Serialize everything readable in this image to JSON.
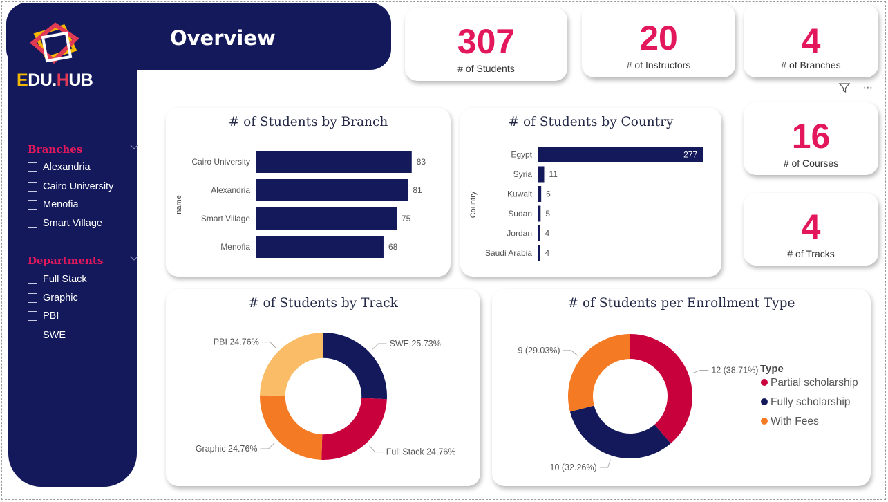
{
  "header": {
    "title": "Overview"
  },
  "logo": {
    "prefix": "E",
    "mid1": "DU.",
    "mid2": "H",
    "suffix": "UB",
    "colors": {
      "navy": "#13195b",
      "accent": "#e3185c",
      "yellow": "#f5b800"
    }
  },
  "slicers": {
    "branches": {
      "title": "Branches",
      "items": [
        "Alexandria",
        "Cairo University",
        "Menofia",
        "Smart Village"
      ]
    },
    "departments": {
      "title": "Departments",
      "items": [
        "Full Stack",
        "Graphic",
        "PBI",
        "SWE"
      ]
    }
  },
  "kpis": {
    "students": {
      "value": "307",
      "label": "# of Students"
    },
    "instructors": {
      "value": "20",
      "label": "# of Instructors"
    },
    "branches": {
      "value": "4",
      "label": "# of Branches"
    },
    "courses": {
      "value": "16",
      "label": "# of Courses"
    },
    "tracks": {
      "value": "4",
      "label": "# of Tracks"
    }
  },
  "toolbar": {
    "filter_icon": "filter-icon",
    "more_icon": "more-options-icon",
    "more_label": "⋯"
  },
  "chart_data": [
    {
      "type": "bar",
      "title": "# of Students by Branch",
      "ylabel": "name",
      "categories": [
        "Cairo University",
        "Alexandria",
        "Smart Village",
        "Menofia"
      ],
      "values": [
        83,
        81,
        75,
        68
      ],
      "xlim": [
        0,
        100
      ],
      "orientation": "horizontal",
      "color": "#13195b"
    },
    {
      "type": "bar",
      "title": "# of Students by Country",
      "ylabel": "Country",
      "categories": [
        "Egypt",
        "Syria",
        "Kuwait",
        "Sudan",
        "Jordan",
        "Saudi Arabia"
      ],
      "values": [
        277,
        11,
        6,
        5,
        4,
        4
      ],
      "xlim": [
        0,
        285
      ],
      "orientation": "horizontal",
      "color": "#13195b"
    },
    {
      "type": "pie",
      "title": "# of Students by Track",
      "donut": true,
      "slices": [
        {
          "label": "SWE 25.73%",
          "value": 25.73,
          "color": "#13195b"
        },
        {
          "label": "Full Stack 24.76%",
          "value": 24.76,
          "color": "#c8003c"
        },
        {
          "label": "Graphic 24.76%",
          "value": 24.76,
          "color": "#f57a24"
        },
        {
          "label": "PBI 24.76%",
          "value": 24.76,
          "color": "#fbbc68"
        }
      ]
    },
    {
      "type": "pie",
      "title": "# of Students per Enrollment Type",
      "donut": true,
      "legend_title": "Type",
      "legend_position": "right",
      "slices": [
        {
          "name": "Partial scholarship",
          "label": "12 (38.71%)",
          "value": 12,
          "color": "#c8003c"
        },
        {
          "name": "Fully scholarship",
          "label": "10 (32.26%)",
          "value": 10,
          "color": "#13195b"
        },
        {
          "name": "With Fees",
          "label": "9 (29.03%)",
          "value": 9,
          "color": "#f57a24"
        }
      ]
    }
  ]
}
